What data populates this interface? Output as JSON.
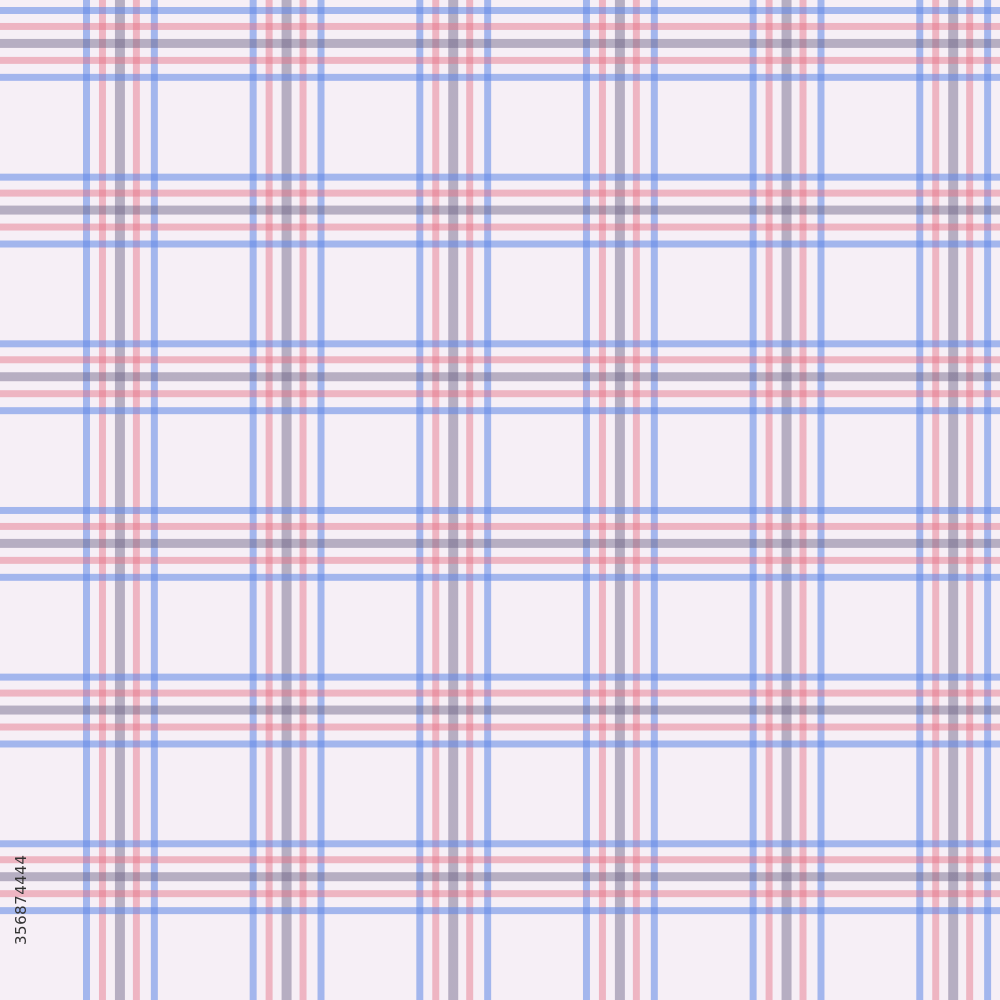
{
  "pattern": {
    "type": "plaid",
    "colors": {
      "background": "#f6eff6",
      "blue": "#5f87e6",
      "red": "#e46e82",
      "gray": "#695f82"
    }
  },
  "watermark": {
    "stock_id": "356874444"
  }
}
